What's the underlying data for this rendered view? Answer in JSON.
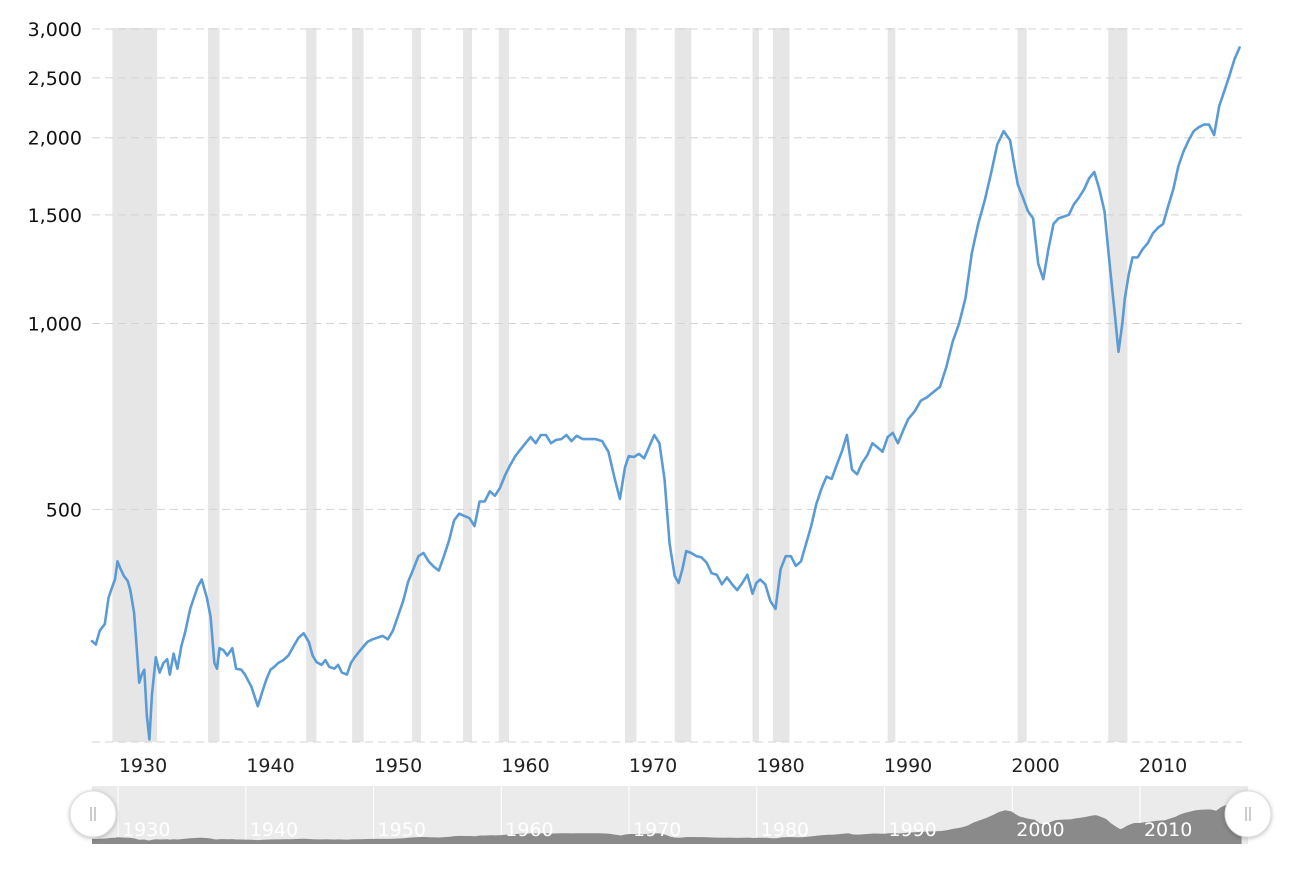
{
  "chart_data": {
    "type": "line",
    "scale": "log",
    "ylim": [
      210,
      3000
    ],
    "xlim": [
      1926,
      2016.5
    ],
    "y_ticks": [
      {
        "value": 3000,
        "label": "3,000"
      },
      {
        "value": 2500,
        "label": "2,500"
      },
      {
        "value": 2000,
        "label": "2,000"
      },
      {
        "value": 1500,
        "label": "1,500"
      },
      {
        "value": 1000,
        "label": "1,000"
      },
      {
        "value": 500,
        "label": "500"
      }
    ],
    "x_ticks": [
      {
        "value": 1930,
        "label": "1930"
      },
      {
        "value": 1940,
        "label": "1940"
      },
      {
        "value": 1950,
        "label": "1950"
      },
      {
        "value": 1960,
        "label": "1960"
      },
      {
        "value": 1970,
        "label": "1970"
      },
      {
        "value": 1980,
        "label": "1980"
      },
      {
        "value": 1990,
        "label": "1990"
      },
      {
        "value": 2000,
        "label": "2000"
      },
      {
        "value": 2010,
        "label": "2010"
      }
    ],
    "recessions": [
      [
        1927.6,
        1931.1
      ],
      [
        1935.1,
        1936.0
      ],
      [
        1942.8,
        1943.6
      ],
      [
        1946.4,
        1947.3
      ],
      [
        1951.1,
        1951.8
      ],
      [
        1955.1,
        1955.8
      ],
      [
        1957.9,
        1958.7
      ],
      [
        1967.8,
        1968.7
      ],
      [
        1971.7,
        1973.0
      ],
      [
        1977.8,
        1978.3
      ],
      [
        1979.4,
        1980.7
      ],
      [
        1988.4,
        1989.0
      ],
      [
        1998.6,
        1999.3
      ],
      [
        2005.7,
        2007.2
      ]
    ],
    "grid": true,
    "legend": "none",
    "line_color": "#5b9bd5",
    "series": [
      {
        "x": [
          1926.0,
          1926.3,
          1926.6,
          1927.0,
          1927.3,
          1927.6,
          1927.8,
          1928.0,
          1928.2,
          1928.5,
          1928.8,
          1929.0,
          1929.3,
          1929.5,
          1929.7,
          1929.9,
          1930.1,
          1930.3,
          1930.5,
          1930.7,
          1931.0,
          1931.3,
          1931.6,
          1931.9,
          1932.1,
          1932.4,
          1932.7,
          1933.0,
          1933.3,
          1933.7,
          1934.0,
          1934.3,
          1934.6,
          1935.0,
          1935.3,
          1935.6,
          1935.8,
          1936.0,
          1936.3,
          1936.6,
          1937.0,
          1937.3,
          1937.7,
          1938.0,
          1938.5,
          1939.0,
          1939.4,
          1939.7,
          1940.0,
          1940.3,
          1940.6,
          1941.0,
          1941.4,
          1941.8,
          1942.2,
          1942.6,
          1943.0,
          1943.3,
          1943.6,
          1944.0,
          1944.3,
          1944.6,
          1945.0,
          1945.3,
          1945.6,
          1946.0,
          1946.3,
          1946.6,
          1947.0,
          1947.3,
          1947.6,
          1948.0,
          1948.4,
          1948.8,
          1949.2,
          1949.6,
          1950.0,
          1950.4,
          1950.8,
          1951.2,
          1951.6,
          1952.0,
          1952.4,
          1952.8,
          1953.2,
          1953.6,
          1954.0,
          1954.4,
          1954.8,
          1955.2,
          1955.6,
          1956.0,
          1956.4,
          1956.8,
          1957.2,
          1957.6,
          1958.0,
          1958.4,
          1958.8,
          1959.2,
          1959.6,
          1960.0,
          1960.4,
          1960.8,
          1961.2,
          1961.6,
          1962.0,
          1962.4,
          1962.8,
          1963.2,
          1963.6,
          1964.0,
          1964.5,
          1965.0,
          1965.5,
          1966.0,
          1966.5,
          1967.0,
          1967.4,
          1967.8,
          1968.1,
          1968.5,
          1968.9,
          1969.3,
          1969.7,
          1970.1,
          1970.5,
          1970.9,
          1971.3,
          1971.7,
          1972.0,
          1972.3,
          1972.6,
          1973.0,
          1973.4,
          1973.8,
          1974.2,
          1974.6,
          1975.0,
          1975.4,
          1975.8,
          1976.2,
          1976.6,
          1977.0,
          1977.4,
          1977.8,
          1978.1,
          1978.4,
          1978.8,
          1979.2,
          1979.6,
          1980.0,
          1980.4,
          1980.8,
          1981.2,
          1981.6,
          1982.0,
          1982.4,
          1982.8,
          1983.2,
          1983.6,
          1984.0,
          1984.4,
          1984.8,
          1985.2,
          1985.6,
          1986.0,
          1986.4,
          1986.8,
          1987.2,
          1987.6,
          1988.0,
          1988.4,
          1988.8,
          1989.2,
          1989.6,
          1990.0,
          1990.5,
          1991.0,
          1991.5,
          1992.0,
          1992.5,
          1993.0,
          1993.5,
          1994.0,
          1994.5,
          1995.0,
          1995.5,
          1996.0,
          1996.5,
          1997.0,
          1997.5,
          1998.0,
          1998.3,
          1998.6,
          1999.0,
          1999.4,
          1999.8,
          2000.2,
          2000.6,
          2001.0,
          2001.4,
          2001.8,
          2002.2,
          2002.6,
          2003.0,
          2003.4,
          2003.8,
          2004.2,
          2004.6,
          2005.0,
          2005.4,
          2005.8,
          2006.2,
          2006.5,
          2006.8,
          2007.0,
          2007.3,
          2007.6,
          2008.0,
          2008.4,
          2008.8,
          2009.2,
          2009.6,
          2010.0,
          2010.4,
          2010.8,
          2011.2,
          2011.6,
          2012.0,
          2012.4,
          2012.8,
          2013.2,
          2013.6,
          2014.0,
          2014.4,
          2014.8,
          2015.2,
          2015.6,
          2016.0
        ],
        "values": [
          306,
          302,
          318,
          326,
          360,
          375,
          385,
          412,
          402,
          390,
          383,
          370,
          340,
          300,
          262,
          270,
          275,
          232,
          212,
          250,
          288,
          272,
          282,
          286,
          270,
          292,
          276,
          300,
          316,
          345,
          360,
          375,
          385,
          360,
          335,
          282,
          276,
          298,
          296,
          290,
          298,
          276,
          275,
          270,
          258,
          240,
          255,
          266,
          275,
          278,
          282,
          285,
          290,
          300,
          310,
          315,
          305,
          290,
          283,
          280,
          285,
          278,
          276,
          280,
          272,
          270,
          282,
          288,
          295,
          300,
          305,
          308,
          310,
          312,
          308,
          318,
          336,
          355,
          382,
          400,
          420,
          425,
          412,
          404,
          398,
          420,
          445,
          480,
          492,
          488,
          484,
          470,
          515,
          515,
          535,
          526,
          542,
          568,
          590,
          610,
          625,
          640,
          655,
          640,
          660,
          660,
          640,
          648,
          650,
          660,
          645,
          658,
          650,
          650,
          650,
          645,
          620,
          560,
          520,
          585,
          610,
          608,
          615,
          605,
          632,
          660,
          640,
          560,
          440,
          390,
          380,
          400,
          428,
          425,
          420,
          418,
          410,
          394,
          392,
          378,
          388,
          378,
          370,
          380,
          392,
          365,
          380,
          385,
          378,
          355,
          345,
          400,
          420,
          420,
          405,
          412,
          440,
          470,
          510,
          540,
          565,
          560,
          590,
          620,
          660,
          580,
          570,
          595,
          612,
          640,
          630,
          620,
          655,
          665,
          640,
          670,
          700,
          720,
          750,
          760,
          775,
          790,
          850,
          935,
          1000,
          1100,
          1300,
          1450,
          1580,
          1750,
          1950,
          2050,
          1980,
          1820,
          1680,
          1600,
          1520,
          1480,
          1250,
          1180,
          1320,
          1450,
          1480,
          1490,
          1500,
          1560,
          1600,
          1650,
          1720,
          1760,
          1650,
          1520,
          1250,
          1040,
          900,
          1000,
          1100,
          1200,
          1280,
          1280,
          1320,
          1350,
          1400,
          1430,
          1450,
          1550,
          1650,
          1800,
          1900,
          1980,
          2050,
          2080,
          2100,
          2100,
          2020,
          2250,
          2380,
          2520,
          2680,
          2800
        ]
      }
    ],
    "navigator": {
      "tick_labels": [
        "1930",
        "1940",
        "1950",
        "1960",
        "1970",
        "1980",
        "1990",
        "2000",
        "2010"
      ],
      "left_handle_icon": "grip-icon",
      "right_handle_icon": "grip-icon"
    }
  }
}
